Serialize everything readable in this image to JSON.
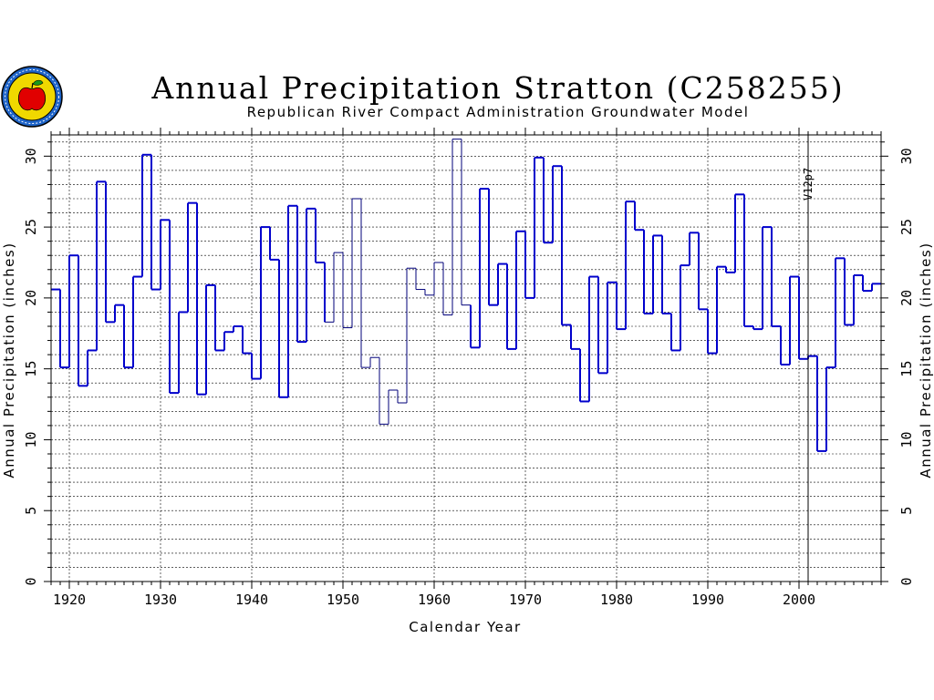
{
  "chart_data": {
    "type": "line",
    "step": true,
    "title": "Annual Precipitation Stratton (C258255)",
    "subtitle": "Republican River Compact Administration Groundwater Model",
    "xlabel": "Calendar Year",
    "ylabel": "Annual Precipitation (inches)",
    "xlim": [
      1918,
      2009
    ],
    "ylim": [
      0,
      31.5
    ],
    "x_ticks": [
      1920,
      1930,
      1940,
      1950,
      1960,
      1970,
      1980,
      1990,
      2000
    ],
    "y_ticks": [
      0,
      5,
      10,
      15,
      20,
      25,
      30
    ],
    "grid": true,
    "colors": {
      "measured": "#0000cc",
      "estimated": "#00007a",
      "frame": "#000000"
    },
    "annotation": {
      "text": "V12p7",
      "x": 2001
    },
    "series": [
      {
        "x": [
          1918,
          1919,
          1920,
          1921,
          1922,
          1923,
          1924,
          1925,
          1926,
          1927,
          1928,
          1929,
          1930,
          1931,
          1932,
          1933,
          1934,
          1935,
          1936,
          1937,
          1938,
          1939,
          1940,
          1941,
          1942,
          1943,
          1944,
          1945,
          1946,
          1947,
          1948,
          1949,
          1950,
          1951,
          1952,
          1953,
          1954,
          1955,
          1956,
          1957,
          1958,
          1959,
          1960,
          1961,
          1962,
          1963,
          1964,
          1965,
          1966,
          1967,
          1968,
          1969,
          1970,
          1971,
          1972,
          1973,
          1974,
          1975,
          1976,
          1977,
          1978,
          1979,
          1980,
          1981,
          1982,
          1983,
          1984,
          1985,
          1986,
          1987,
          1988,
          1989,
          1990,
          1991,
          1992,
          1993,
          1994,
          1995,
          1996,
          1997,
          1998,
          1999,
          2000,
          2001,
          2002,
          2003,
          2004,
          2005,
          2006,
          2007,
          2008
        ],
        "values": [
          20.6,
          15.1,
          23.0,
          13.8,
          16.3,
          28.2,
          18.3,
          19.5,
          15.1,
          21.5,
          30.1,
          20.6,
          25.5,
          13.3,
          19.0,
          26.7,
          13.2,
          20.9,
          16.3,
          17.6,
          18.0,
          16.1,
          14.3,
          25.0,
          22.7,
          13.0,
          26.5,
          16.9,
          26.3,
          22.5,
          18.3,
          23.2,
          17.9,
          27.0,
          15.1,
          15.8,
          11.1,
          13.5,
          12.6,
          22.1,
          20.6,
          20.2,
          22.5,
          18.8,
          31.2,
          19.5,
          16.5,
          27.7,
          19.5,
          22.4,
          16.4,
          24.7,
          20.0,
          29.9,
          23.9,
          29.3,
          18.1,
          16.4,
          12.7,
          21.5,
          14.7,
          21.1,
          17.8,
          26.8,
          24.8,
          18.9,
          24.4,
          18.9,
          16.3,
          22.3,
          24.6,
          19.2,
          16.1,
          22.2,
          21.8,
          27.3,
          18.0,
          17.8,
          25.0,
          18.0,
          15.3,
          21.5,
          15.7,
          15.9,
          9.2,
          15.1,
          22.8,
          18.1,
          21.6,
          20.5,
          21.0
        ],
        "estimated": [
          0,
          0,
          0,
          0,
          0,
          0,
          0,
          0,
          0,
          0,
          0,
          0,
          0,
          0,
          0,
          0,
          0,
          0,
          0,
          0,
          0,
          0,
          0,
          0,
          0,
          0,
          0,
          0,
          0,
          0,
          1,
          1,
          1,
          1,
          1,
          1,
          1,
          1,
          1,
          1,
          1,
          1,
          1,
          1,
          1,
          1,
          0,
          0,
          0,
          0,
          0,
          0,
          0,
          0,
          0,
          0,
          0,
          0,
          0,
          0,
          0,
          0,
          0,
          0,
          0,
          0,
          0,
          0,
          0,
          0,
          0,
          0,
          0,
          0,
          0,
          0,
          0,
          0,
          0,
          0,
          0,
          0,
          0,
          0,
          0,
          0,
          0,
          0,
          0,
          0,
          0
        ]
      }
    ]
  }
}
